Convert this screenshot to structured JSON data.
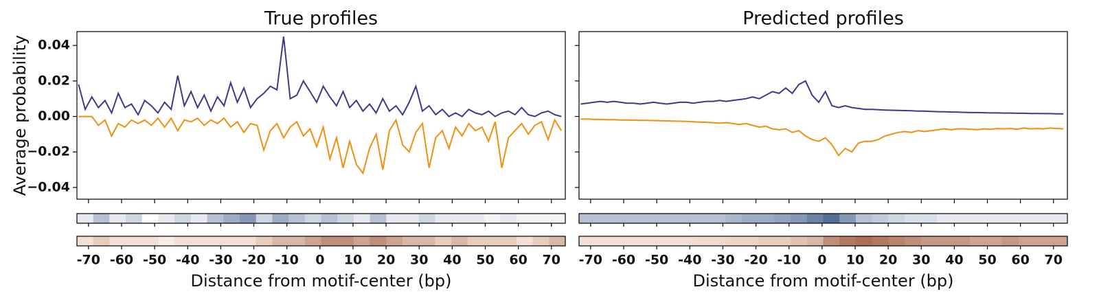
{
  "chart_data": [
    {
      "type": "line",
      "title": "True profiles",
      "ylabel": "Average probability",
      "xlabel": "Distance from motif-center (bp)",
      "xlim": [
        -73.5,
        74.2
      ],
      "ylim": [
        -0.0466,
        0.0478
      ],
      "xticks": [
        -70,
        -60,
        -50,
        -40,
        -30,
        -20,
        -10,
        0,
        10,
        20,
        30,
        40,
        50,
        60,
        70
      ],
      "yticks": [
        0.04,
        0.02,
        {
          "value": 0,
          "label": "0.00"
        },
        {
          "value": -0.02,
          "label": "−0.02"
        },
        {
          "value": -0.04,
          "label": "−0.04"
        }
      ],
      "show_ytick_labels": true,
      "x": [
        -73,
        -71,
        -69,
        -67,
        -65,
        -63,
        -61,
        -59,
        -57,
        -55,
        -53,
        -51,
        -49,
        -47,
        -45,
        -43,
        -41,
        -39,
        -37,
        -35,
        -33,
        -31,
        -29,
        -27,
        -25,
        -23,
        -21,
        -19,
        -17,
        -15,
        -13,
        -11,
        -9,
        -7,
        -5,
        -3,
        -1,
        1,
        3,
        5,
        7,
        9,
        11,
        13,
        15,
        17,
        19,
        21,
        23,
        25,
        27,
        29,
        31,
        33,
        35,
        37,
        39,
        41,
        43,
        45,
        47,
        49,
        51,
        53,
        55,
        57,
        59,
        61,
        63,
        65,
        67,
        69,
        71,
        73
      ],
      "series": [
        {
          "color": "#3f3789",
          "values": [
            0.018,
            0.004,
            0.011,
            0.005,
            0.009,
            0.002,
            0.013,
            0.005,
            0.007,
            0.001,
            0.009,
            0.006,
            0.002,
            0.008,
            0.004,
            0.023,
            0.006,
            0.014,
            0.005,
            0.012,
            0.003,
            0.011,
            0.006,
            0.019,
            0.008,
            0.016,
            0.005,
            0.01,
            0.013,
            0.017,
            0.015,
            0.045,
            0.01,
            0.012,
            0.02,
            0.014,
            0.008,
            0.017,
            0.011,
            0.006,
            0.014,
            0.005,
            0.009,
            0.003,
            0.007,
            0.002,
            0.01,
            0.003,
            0.006,
            0.001,
            0.008,
            0.017,
            0.003,
            0.006,
            0.001,
            0.004,
            0.0,
            0.002,
            0.0,
            0.004,
            0.002,
            0.001,
            0.003,
            0.0,
            0.002,
            0.003,
            0.001,
            0.005,
            0.001,
            0.0,
            0.002,
            0.003,
            0.001,
            0.0
          ]
        },
        {
          "color": "#f28e10",
          "values": [
            0,
            0,
            0,
            -0.005,
            -0.002,
            -0.011,
            -0.004,
            -0.006,
            -0.002,
            -0.004,
            -0.002,
            -0.005,
            -0.001,
            -0.006,
            -0.001,
            -0.008,
            -0.002,
            -0.003,
            -0.001,
            -0.005,
            -0.002,
            -0.004,
            -0.001,
            -0.006,
            -0.003,
            -0.009,
            -0.004,
            -0.005,
            -0.019,
            -0.008,
            -0.004,
            -0.012,
            -0.006,
            -0.003,
            -0.011,
            -0.007,
            -0.017,
            -0.006,
            -0.024,
            -0.012,
            -0.029,
            -0.014,
            -0.027,
            -0.032,
            -0.018,
            -0.01,
            -0.03,
            -0.008,
            -0.002,
            -0.016,
            -0.02,
            -0.009,
            -0.004,
            -0.029,
            -0.012,
            -0.008,
            -0.018,
            -0.006,
            -0.011,
            -0.004,
            -0.008,
            -0.006,
            -0.014,
            -0.003,
            -0.029,
            -0.012,
            -0.008,
            -0.004,
            -0.01,
            -0.005,
            -0.003,
            -0.013,
            -0.002,
            -0.008
          ]
        }
      ],
      "heatmaps": [
        {
          "colors": [
            "#ffffff",
            "#08306b"
          ],
          "values": [
            0.1,
            0.3,
            0.1,
            0.2,
            0,
            0.1,
            0.2,
            0.1,
            0.3,
            0.4,
            0.5,
            0.2,
            0.4,
            0.3,
            0.2,
            0.3,
            0.2,
            0.1,
            0.3,
            0.1,
            0.1,
            0.2,
            0.1,
            0.1,
            0.1,
            0.05,
            0.1,
            0.05,
            0.05,
            0.05
          ]
        },
        {
          "colors": [
            "#fff5eb",
            "#7f2704"
          ],
          "values": [
            0.1,
            0.2,
            0.1,
            0.1,
            0.1,
            0.05,
            0.1,
            0.1,
            0.1,
            0.1,
            0.1,
            0.2,
            0.3,
            0.3,
            0.4,
            0.5,
            0.5,
            0.4,
            0.5,
            0.4,
            0.3,
            0.3,
            0.2,
            0.3,
            0.2,
            0.2,
            0.2,
            0.1,
            0.2,
            0.3
          ]
        }
      ]
    },
    {
      "type": "line",
      "title": "Predicted profiles",
      "xlabel": "Distance from motif-center (bp)",
      "xlim": [
        -73.5,
        74.2
      ],
      "ylim": [
        -0.0466,
        0.0478
      ],
      "xticks": [
        -70,
        -60,
        -50,
        -40,
        -30,
        -20,
        -10,
        0,
        10,
        20,
        30,
        40,
        50,
        60,
        70
      ],
      "yticks": [
        0.04,
        0.02,
        0,
        -0.02,
        -0.04
      ],
      "show_ytick_labels": false,
      "x": [
        -73,
        -71,
        -69,
        -67,
        -65,
        -63,
        -61,
        -59,
        -57,
        -55,
        -53,
        -51,
        -49,
        -47,
        -45,
        -43,
        -41,
        -39,
        -37,
        -35,
        -33,
        -31,
        -29,
        -27,
        -25,
        -23,
        -21,
        -19,
        -17,
        -15,
        -13,
        -11,
        -9,
        -7,
        -5,
        -3,
        -1,
        1,
        3,
        5,
        7,
        9,
        11,
        13,
        15,
        17,
        19,
        21,
        23,
        25,
        27,
        29,
        31,
        33,
        35,
        37,
        39,
        41,
        43,
        45,
        47,
        49,
        51,
        53,
        55,
        57,
        59,
        61,
        63,
        65,
        67,
        69,
        71,
        73
      ],
      "series": [
        {
          "color": "#3f3789",
          "values": [
            0.007,
            0.0075,
            0.008,
            0.0085,
            0.008,
            0.0085,
            0.008,
            0.0075,
            0.0075,
            0.007,
            0.0075,
            0.008,
            0.0075,
            0.007,
            0.0075,
            0.008,
            0.008,
            0.0075,
            0.008,
            0.0085,
            0.0085,
            0.009,
            0.0085,
            0.009,
            0.0095,
            0.01,
            0.011,
            0.01,
            0.012,
            0.014,
            0.013,
            0.016,
            0.013,
            0.018,
            0.02,
            0.012,
            0.008,
            0.014,
            0.006,
            0.005,
            0.006,
            0.005,
            0.0045,
            0.004,
            0.004,
            0.0038,
            0.0036,
            0.0035,
            0.0034,
            0.0033,
            0.0032,
            0.003,
            0.003,
            0.0028,
            0.0027,
            0.0026,
            0.0025,
            0.0024,
            0.0023,
            0.0022,
            0.0022,
            0.0021,
            0.002,
            0.002,
            0.0019,
            0.0019,
            0.0018,
            0.0018,
            0.0017,
            0.0017,
            0.0016,
            0.0016,
            0.0015,
            0.0015
          ]
        },
        {
          "color": "#f28e10",
          "values": [
            -0.0015,
            -0.0015,
            -0.0016,
            -0.0017,
            -0.0018,
            -0.0018,
            -0.002,
            -0.002,
            -0.0021,
            -0.0022,
            -0.0022,
            -0.0023,
            -0.0024,
            -0.0025,
            -0.0026,
            -0.0027,
            -0.0028,
            -0.003,
            -0.0032,
            -0.0033,
            -0.0035,
            -0.0038,
            -0.0035,
            -0.004,
            -0.0045,
            -0.004,
            -0.005,
            -0.006,
            -0.0055,
            -0.007,
            -0.0075,
            -0.007,
            -0.009,
            -0.008,
            -0.011,
            -0.013,
            -0.014,
            -0.012,
            -0.016,
            -0.022,
            -0.018,
            -0.02,
            -0.015,
            -0.014,
            -0.014,
            -0.013,
            -0.011,
            -0.01,
            -0.009,
            -0.0085,
            -0.009,
            -0.008,
            -0.0085,
            -0.008,
            -0.0075,
            -0.007,
            -0.0075,
            -0.007,
            -0.007,
            -0.0072,
            -0.0075,
            -0.007,
            -0.0072,
            -0.0068,
            -0.007,
            -0.0068,
            -0.0072,
            -0.0065,
            -0.007,
            -0.0068,
            -0.007,
            -0.0065,
            -0.0068,
            -0.007
          ]
        }
      ],
      "heatmaps": [
        {
          "colors": [
            "#ffffff",
            "#08306b"
          ],
          "values": [
            0.3,
            0.3,
            0.3,
            0.3,
            0.3,
            0.3,
            0.3,
            0.3,
            0.3,
            0.35,
            0.4,
            0.4,
            0.45,
            0.5,
            0.6,
            0.7,
            0.5,
            0.3,
            0.25,
            0.2,
            0.15,
            0.15,
            0.1,
            0.1,
            0.1,
            0.1,
            0.1,
            0.1,
            0.1,
            0.1
          ]
        },
        {
          "colors": [
            "#fff5eb",
            "#7f2704"
          ],
          "values": [
            0.1,
            0.1,
            0.1,
            0.1,
            0.1,
            0.1,
            0.1,
            0.12,
            0.12,
            0.15,
            0.15,
            0.2,
            0.2,
            0.25,
            0.3,
            0.5,
            0.6,
            0.65,
            0.6,
            0.55,
            0.5,
            0.45,
            0.45,
            0.45,
            0.4,
            0.4,
            0.45,
            0.4,
            0.4,
            0.4
          ]
        }
      ]
    }
  ]
}
